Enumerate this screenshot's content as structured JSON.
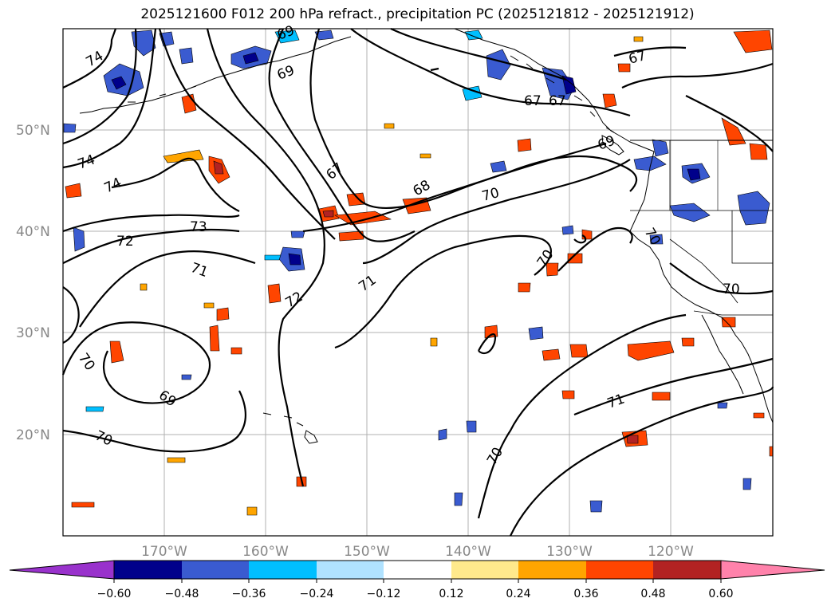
{
  "title": "2025121600 F012 200 hPa refract., precipitation PC (2025121812 - 2025121912)",
  "lat_labels": [
    "50°N",
    "40°N",
    "30°N",
    "20°N"
  ],
  "lon_labels": [
    "170°W",
    "160°W",
    "150°W",
    "140°W",
    "130°W",
    "120°W"
  ],
  "contour_labels": [
    "74",
    "74",
    "74",
    "73",
    "72",
    "72",
    "71",
    "71",
    "70",
    "70",
    "69",
    "69",
    "69",
    "68",
    "67",
    "67",
    "67",
    "67",
    "69",
    "70",
    "70",
    "71",
    "70"
  ],
  "colorbar": {
    "ticks": [
      "−0.60",
      "−0.48",
      "−0.36",
      "−0.24",
      "−0.12",
      "0.12",
      "0.24",
      "0.36",
      "0.48",
      "0.60"
    ],
    "colors": [
      "#9932cc",
      "#00008b",
      "#3a5bd0",
      "#00bfff",
      "#b0e2ff",
      "#ffffff",
      "#ffe98c",
      "#ffa500",
      "#ff4500",
      "#b22222",
      "#ff82ab"
    ]
  }
}
